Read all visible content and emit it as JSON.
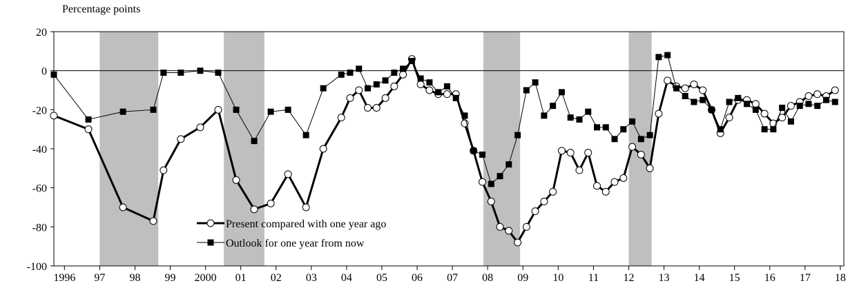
{
  "chart_data": {
    "type": "line",
    "ylabel": "Percentage points",
    "x": [
      1995.9,
      1996.88,
      1997.86,
      1998.72,
      1999.01,
      1999.5,
      2000.05,
      2000.56,
      2001.07,
      2001.58,
      2002.05,
      2002.54,
      2003.05,
      2003.54,
      2004.05,
      2004.3,
      2004.55,
      2004.8,
      2005.05,
      2005.3,
      2005.55,
      2005.8,
      2006.05,
      2006.3,
      2006.55,
      2006.8,
      2007.05,
      2007.3,
      2007.55,
      2007.8,
      2008.05,
      2008.3,
      2008.55,
      2008.8,
      2009.05,
      2009.3,
      2009.55,
      2009.8,
      2010.05,
      2010.3,
      2010.55,
      2010.8,
      2011.05,
      2011.3,
      2011.55,
      2011.8,
      2012.05,
      2012.3,
      2012.55,
      2012.8,
      2013.05,
      2013.3,
      2013.55,
      2013.8,
      2014.05,
      2014.3,
      2014.55,
      2014.8,
      2015.05,
      2015.3,
      2015.55,
      2015.8,
      2016.05,
      2016.3,
      2016.55,
      2016.8,
      2017.05,
      2017.3,
      2017.55,
      2017.8,
      2018.05
    ],
    "series": [
      {
        "name": "Present compared with one year ago",
        "color": "#000000",
        "marker": "circle",
        "values": [
          -23,
          -30,
          -70,
          -77,
          -51,
          -35,
          -29,
          -20,
          -56,
          -71,
          -68,
          -53,
          -70,
          -40,
          -24,
          -14,
          -10,
          -19,
          -19,
          -14,
          -8,
          -2,
          6,
          -7,
          -10,
          -12,
          -12,
          -12,
          -27,
          -41,
          -57,
          -67,
          -80,
          -82,
          -88,
          -80,
          -72,
          -67,
          -62,
          -41,
          -42,
          -51,
          -42,
          -59,
          -62,
          -57,
          -55,
          -39,
          -43,
          -50,
          -22,
          -5,
          -8,
          -9,
          -7,
          -10,
          -20,
          -32,
          -24,
          -15,
          -15,
          -17,
          -22,
          -27,
          -24,
          -18,
          -16,
          -13,
          -12,
          -13,
          -10
        ]
      },
      {
        "name": "Outlook for one year from now",
        "color": "#000000",
        "marker": "square",
        "values": [
          -2,
          -25,
          -21,
          -20,
          -1,
          -1,
          0,
          -1,
          -20,
          -36,
          -21,
          -20,
          -33,
          -9,
          -2,
          -1,
          1,
          -9,
          -7,
          -5,
          -1,
          1,
          5,
          -4,
          -6,
          -11,
          -8,
          -14,
          -23,
          -41,
          -43,
          -58,
          -54,
          -48,
          -33,
          -10,
          -6,
          -23,
          -18,
          -11,
          -24,
          -25,
          -21,
          -29,
          -29,
          -35,
          -30,
          -26,
          -35,
          -33,
          7,
          8,
          -9,
          -13,
          -16,
          -15,
          -20,
          -30,
          -16,
          -14,
          -17,
          -20,
          -30,
          -30,
          -19,
          -26,
          -18,
          -17,
          -18,
          -15,
          -16
        ]
      }
    ],
    "shaded": [
      [
        1997.2,
        1998.86
      ],
      [
        2000.72,
        2001.87
      ],
      [
        2008.08,
        2009.12
      ],
      [
        2012.2,
        2012.85
      ]
    ],
    "shade_color": "#bfbfbf",
    "xlim": [
      1995.9,
      2018.3
    ],
    "xticks": [
      {
        "value": 1996.2,
        "label": "1996"
      },
      {
        "value": 1997.2,
        "label": "97"
      },
      {
        "value": 1998.2,
        "label": "98"
      },
      {
        "value": 1999.2,
        "label": "99"
      },
      {
        "value": 2000.2,
        "label": "2000"
      },
      {
        "value": 2001.2,
        "label": "01"
      },
      {
        "value": 2002.2,
        "label": "02"
      },
      {
        "value": 2003.2,
        "label": "03"
      },
      {
        "value": 2004.2,
        "label": "04"
      },
      {
        "value": 2005.2,
        "label": "05"
      },
      {
        "value": 2006.2,
        "label": "06"
      },
      {
        "value": 2007.2,
        "label": "07"
      },
      {
        "value": 2008.2,
        "label": "08"
      },
      {
        "value": 2009.2,
        "label": "09"
      },
      {
        "value": 2010.2,
        "label": "10"
      },
      {
        "value": 2011.2,
        "label": "11"
      },
      {
        "value": 2012.2,
        "label": "12"
      },
      {
        "value": 2013.2,
        "label": "13"
      },
      {
        "value": 2014.2,
        "label": "14"
      },
      {
        "value": 2015.2,
        "label": "15"
      },
      {
        "value": 2016.2,
        "label": "16"
      },
      {
        "value": 2017.2,
        "label": "17"
      },
      {
        "value": 2018.2,
        "label": "18"
      }
    ],
    "ylim": [
      -100,
      20
    ],
    "yticks": [
      -100,
      -80,
      -60,
      -40,
      -20,
      0,
      20
    ],
    "zero_line": true
  }
}
